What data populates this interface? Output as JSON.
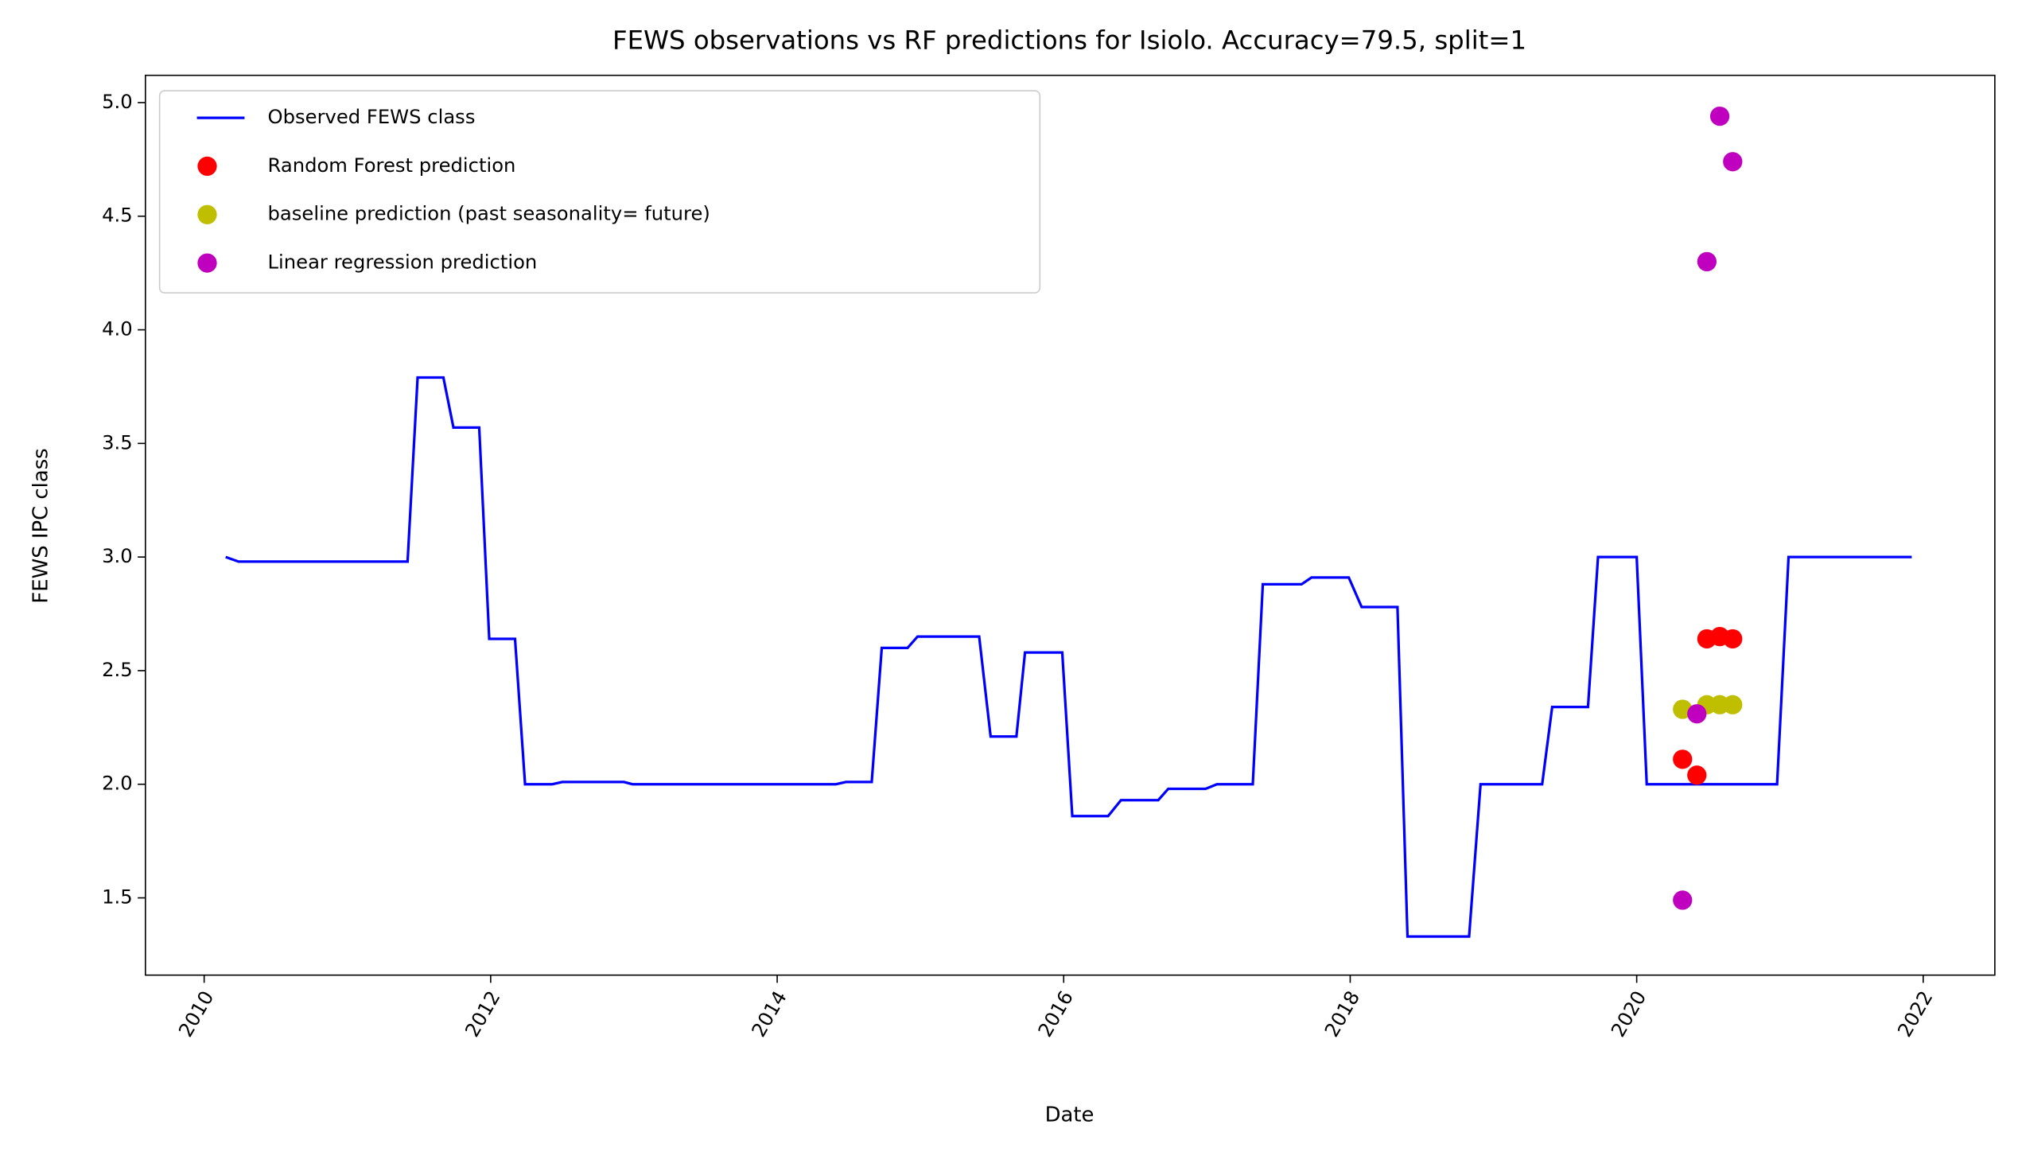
{
  "chart_data": {
    "type": "line",
    "title": "FEWS observations vs RF predictions for Isiolo. Accuracy=79.5, split=1",
    "x_label": "Date",
    "y_label": "FEWS IPC class",
    "xlim": [
      2009.59,
      2022.5
    ],
    "ylim": [
      1.16,
      5.12
    ],
    "xticks": [
      2010,
      2012,
      2014,
      2016,
      2018,
      2020,
      2022
    ],
    "yticks": [
      {
        "value": 1.5,
        "label": "1.5"
      },
      {
        "value": 2,
        "label": "2.0"
      },
      {
        "value": 2.5,
        "label": "2.5"
      },
      {
        "value": 3,
        "label": "3.0"
      },
      {
        "value": 3.5,
        "label": "3.5"
      },
      {
        "value": 4,
        "label": "4.0"
      },
      {
        "value": 4.5,
        "label": "4.5"
      },
      {
        "value": 5,
        "label": "5.0"
      }
    ],
    "legend": "upper left",
    "series": [
      {
        "name": "Observed FEWS class",
        "color": "#0000ff",
        "style": "line",
        "x": [
          2010.15,
          2010.24,
          2011.42,
          2011.49,
          2011.67,
          2011.74,
          2011.92,
          2011.99,
          2012.17,
          2012.24,
          2012.43,
          2012.5,
          2012.93,
          2012.99,
          2014.41,
          2014.48,
          2014.66,
          2014.73,
          2014.91,
          2014.98,
          2015.41,
          2015.49,
          2015.67,
          2015.73,
          2015.99,
          2016.06,
          2016.31,
          2016.4,
          2016.66,
          2016.73,
          2016.99,
          2017.07,
          2017.32,
          2017.39,
          2017.66,
          2017.73,
          2017.99,
          2018.08,
          2018.33,
          2018.4,
          2018.83,
          2018.91,
          2019.34,
          2019.41,
          2019.66,
          2019.73,
          2020.0,
          2020.07,
          2020.98,
          2021.06,
          2021.92
        ],
        "values": [
          3.0,
          2.98,
          2.98,
          3.79,
          3.79,
          3.57,
          3.57,
          2.64,
          2.64,
          2.0,
          2.0,
          2.01,
          2.01,
          2.0,
          2.0,
          2.01,
          2.01,
          2.6,
          2.6,
          2.65,
          2.65,
          2.21,
          2.21,
          2.58,
          2.58,
          1.86,
          1.86,
          1.93,
          1.93,
          1.98,
          1.98,
          2.0,
          2.0,
          2.88,
          2.88,
          2.91,
          2.91,
          2.78,
          2.78,
          1.33,
          1.33,
          2.0,
          2.0,
          2.34,
          2.34,
          3.0,
          3.0,
          2.0,
          2.0,
          3.0,
          3.0
        ]
      },
      {
        "name": "Random Forest prediction",
        "color": "#ff0000",
        "style": "marker",
        "x": [
          2020.32,
          2020.42,
          2020.49,
          2020.58,
          2020.67
        ],
        "values": [
          2.11,
          2.04,
          2.64,
          2.65,
          2.64
        ]
      },
      {
        "name": "baseline prediction (past seasonality= future)",
        "color": "#bfbf00",
        "style": "marker",
        "x": [
          2020.32,
          2020.49,
          2020.58,
          2020.67
        ],
        "values": [
          2.33,
          2.35,
          2.35,
          2.35
        ]
      },
      {
        "name": "Linear regression prediction",
        "color": "#bf00bf",
        "style": "marker",
        "x": [
          2020.32,
          2020.42,
          2020.49,
          2020.58,
          2020.67
        ],
        "values": [
          1.49,
          2.31,
          4.3,
          4.94,
          4.74
        ]
      }
    ]
  }
}
